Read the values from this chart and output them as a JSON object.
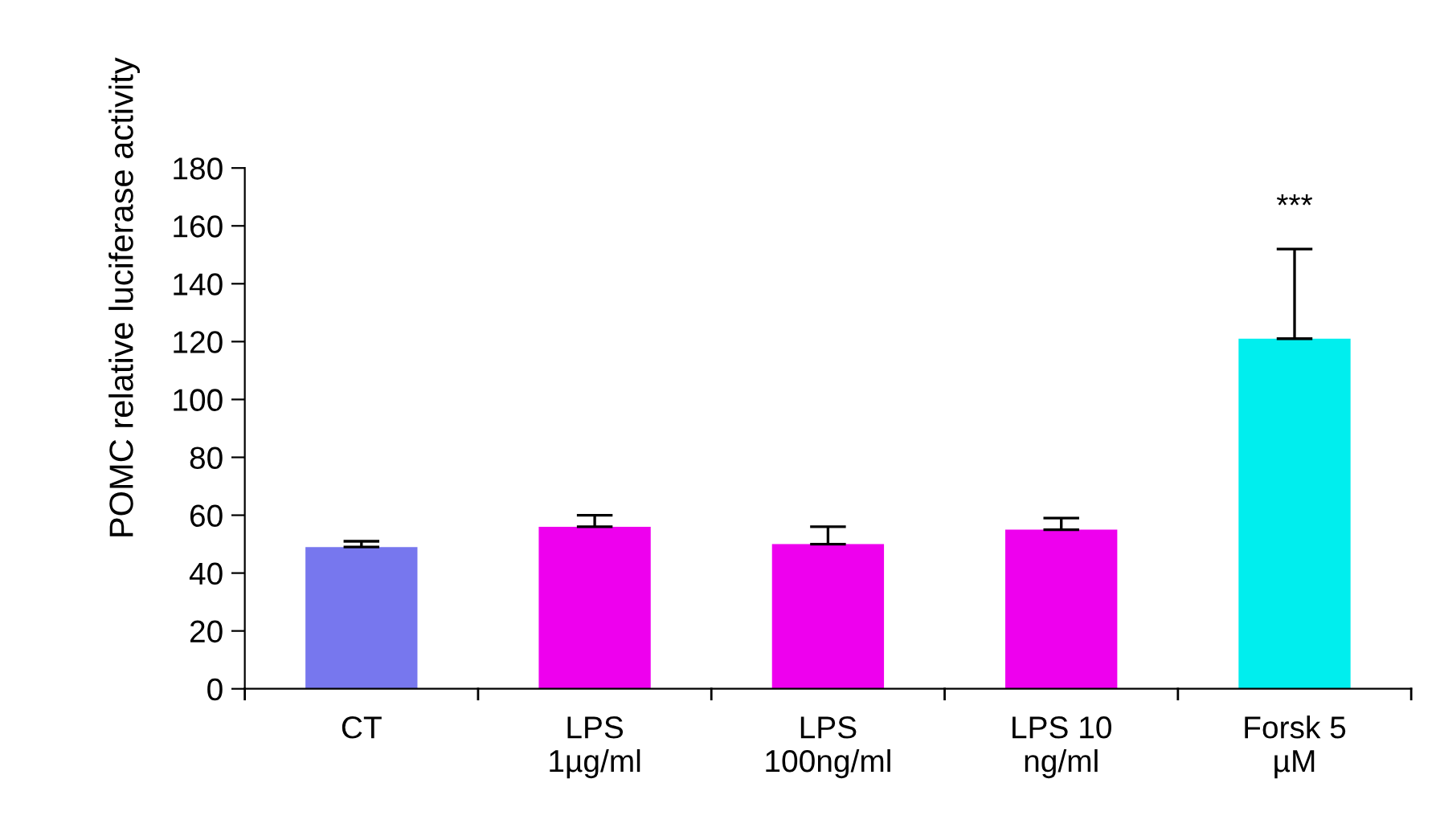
{
  "chart_data": {
    "type": "bar",
    "ylabel": "POMC relative luciferase activity",
    "categories": [
      "CT",
      "LPS\n1µg/ml",
      "LPS\n100ng/ml",
      "LPS 10\nng/ml",
      "Forsk 5\nµM"
    ],
    "values": [
      49,
      56,
      50,
      55,
      121
    ],
    "errors": [
      [
        49,
        51
      ],
      [
        56,
        60
      ],
      [
        50,
        56
      ],
      [
        55,
        59
      ],
      [
        121,
        152
      ]
    ],
    "colors": [
      "#7777ee",
      "#ee00ee",
      "#ee00ee",
      "#ee00ee",
      "#00eeee"
    ],
    "ylim": [
      0,
      180
    ],
    "yticks": [
      0,
      20,
      40,
      60,
      80,
      100,
      120,
      140,
      160,
      180
    ],
    "annotations": [
      "***"
    ],
    "grid": false,
    "legend": false
  }
}
